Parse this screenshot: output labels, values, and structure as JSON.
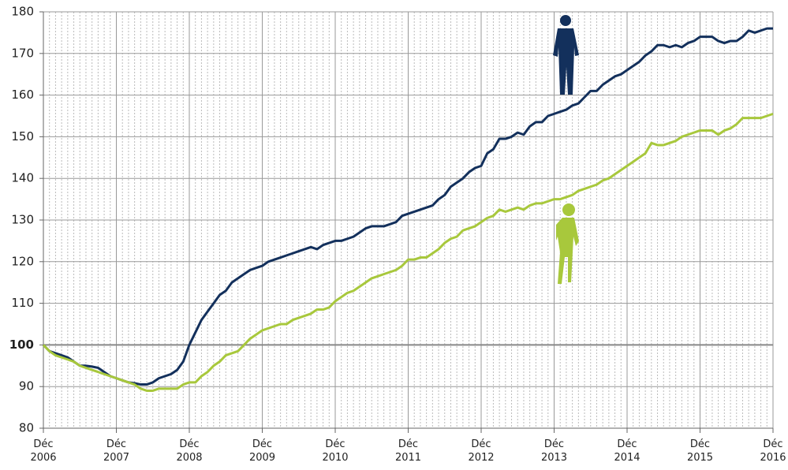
{
  "chart_data": {
    "type": "line",
    "categories": [
      "Déc 2006",
      null,
      null,
      null,
      null,
      null,
      null,
      null,
      null,
      null,
      null,
      null,
      "Déc 2007",
      null,
      null,
      null,
      null,
      null,
      null,
      null,
      null,
      null,
      null,
      null,
      "Déc 2008",
      null,
      null,
      null,
      null,
      null,
      null,
      null,
      null,
      null,
      null,
      null,
      "Déc 2009",
      null,
      null,
      null,
      null,
      null,
      null,
      null,
      null,
      null,
      null,
      null,
      "Déc 2010",
      null,
      null,
      null,
      null,
      null,
      null,
      null,
      null,
      null,
      null,
      null,
      "Déc 2011",
      null,
      null,
      null,
      null,
      null,
      null,
      null,
      null,
      null,
      null,
      null,
      "Déc 2012",
      null,
      null,
      null,
      null,
      null,
      null,
      null,
      null,
      null,
      null,
      null,
      "Déc 2013",
      null,
      null,
      null,
      null,
      null,
      null,
      null,
      null,
      null,
      null,
      null,
      "Déc 2014",
      null,
      null,
      null,
      null,
      null,
      null,
      null,
      null,
      null,
      null,
      null,
      "Déc 2015",
      null,
      null,
      null,
      null,
      null,
      null,
      null,
      null,
      null,
      null,
      null,
      "Déc 2016"
    ],
    "series": [
      {
        "color": "#13305c",
        "values": [
          100,
          98.5,
          98,
          97.5,
          97,
          96,
          95,
          95,
          94.8,
          94.5,
          93.5,
          92.5,
          92,
          91.5,
          91,
          90.8,
          90.5,
          90.5,
          91,
          92,
          92.5,
          93,
          94,
          96,
          100,
          103,
          106,
          108,
          110,
          112,
          113,
          115,
          116,
          117,
          118,
          118.5,
          119,
          120,
          120.5,
          121,
          121.5,
          122,
          122.5,
          123,
          123.5,
          123,
          124,
          124.5,
          125,
          125,
          125.5,
          126,
          127,
          128,
          128.5,
          128.5,
          128.5,
          129,
          129.5,
          131,
          131.5,
          132,
          132.5,
          133,
          133.5,
          135,
          136,
          138,
          139,
          140,
          141.5,
          142.5,
          143,
          146,
          147,
          149.5,
          149.5,
          150,
          151,
          150.5,
          152.5,
          153.5,
          153.5,
          155,
          155.5,
          156,
          156.5,
          157.5,
          158,
          159.5,
          161,
          161,
          162.5,
          163.5,
          164.5,
          165,
          166,
          167,
          168,
          169.5,
          170.5,
          172,
          172,
          171.5,
          172,
          171.5,
          172.5,
          173,
          174,
          174,
          174,
          173,
          172.5,
          173,
          173,
          174,
          175.5,
          175,
          175.5,
          176,
          176
        ]
      },
      {
        "color": "#a8c83c",
        "values": [
          100,
          98.5,
          97.5,
          97,
          96.5,
          96,
          95,
          94.5,
          94,
          93.5,
          93,
          92.5,
          92,
          91.5,
          91,
          90.5,
          89.5,
          89,
          89,
          89.5,
          89.5,
          89.5,
          89.5,
          90.5,
          91,
          91,
          92.5,
          93.5,
          95,
          96,
          97.5,
          98,
          98.5,
          100,
          101.5,
          102.5,
          103.5,
          104,
          104.5,
          105,
          105,
          106,
          106.5,
          107,
          107.5,
          108.5,
          108.5,
          109,
          110.5,
          111.5,
          112.5,
          113,
          114,
          115,
          116,
          116.5,
          117,
          117.5,
          118,
          119,
          120.5,
          120.5,
          121,
          121,
          122,
          123,
          124.5,
          125.5,
          126,
          127.5,
          128,
          128.5,
          129.5,
          130.5,
          131,
          132.5,
          132,
          132.5,
          133,
          132.5,
          133.5,
          134,
          134,
          134.5,
          135,
          135,
          135.5,
          136,
          137,
          137.5,
          138,
          138.5,
          139.5,
          140,
          141,
          142,
          143,
          144,
          145,
          146,
          148.5,
          148,
          148,
          148.5,
          149,
          150,
          150.5,
          151,
          151.5,
          151.5,
          151.5,
          150.5,
          151.5,
          152,
          153,
          154.5,
          154.5,
          154.5,
          154.5,
          155,
          155.5
        ]
      }
    ],
    "ylim": [
      80,
      180
    ],
    "yticks": [
      80,
      90,
      100,
      110,
      120,
      130,
      140,
      150,
      160,
      170,
      180
    ],
    "reference_line": 100,
    "grid": true
  }
}
